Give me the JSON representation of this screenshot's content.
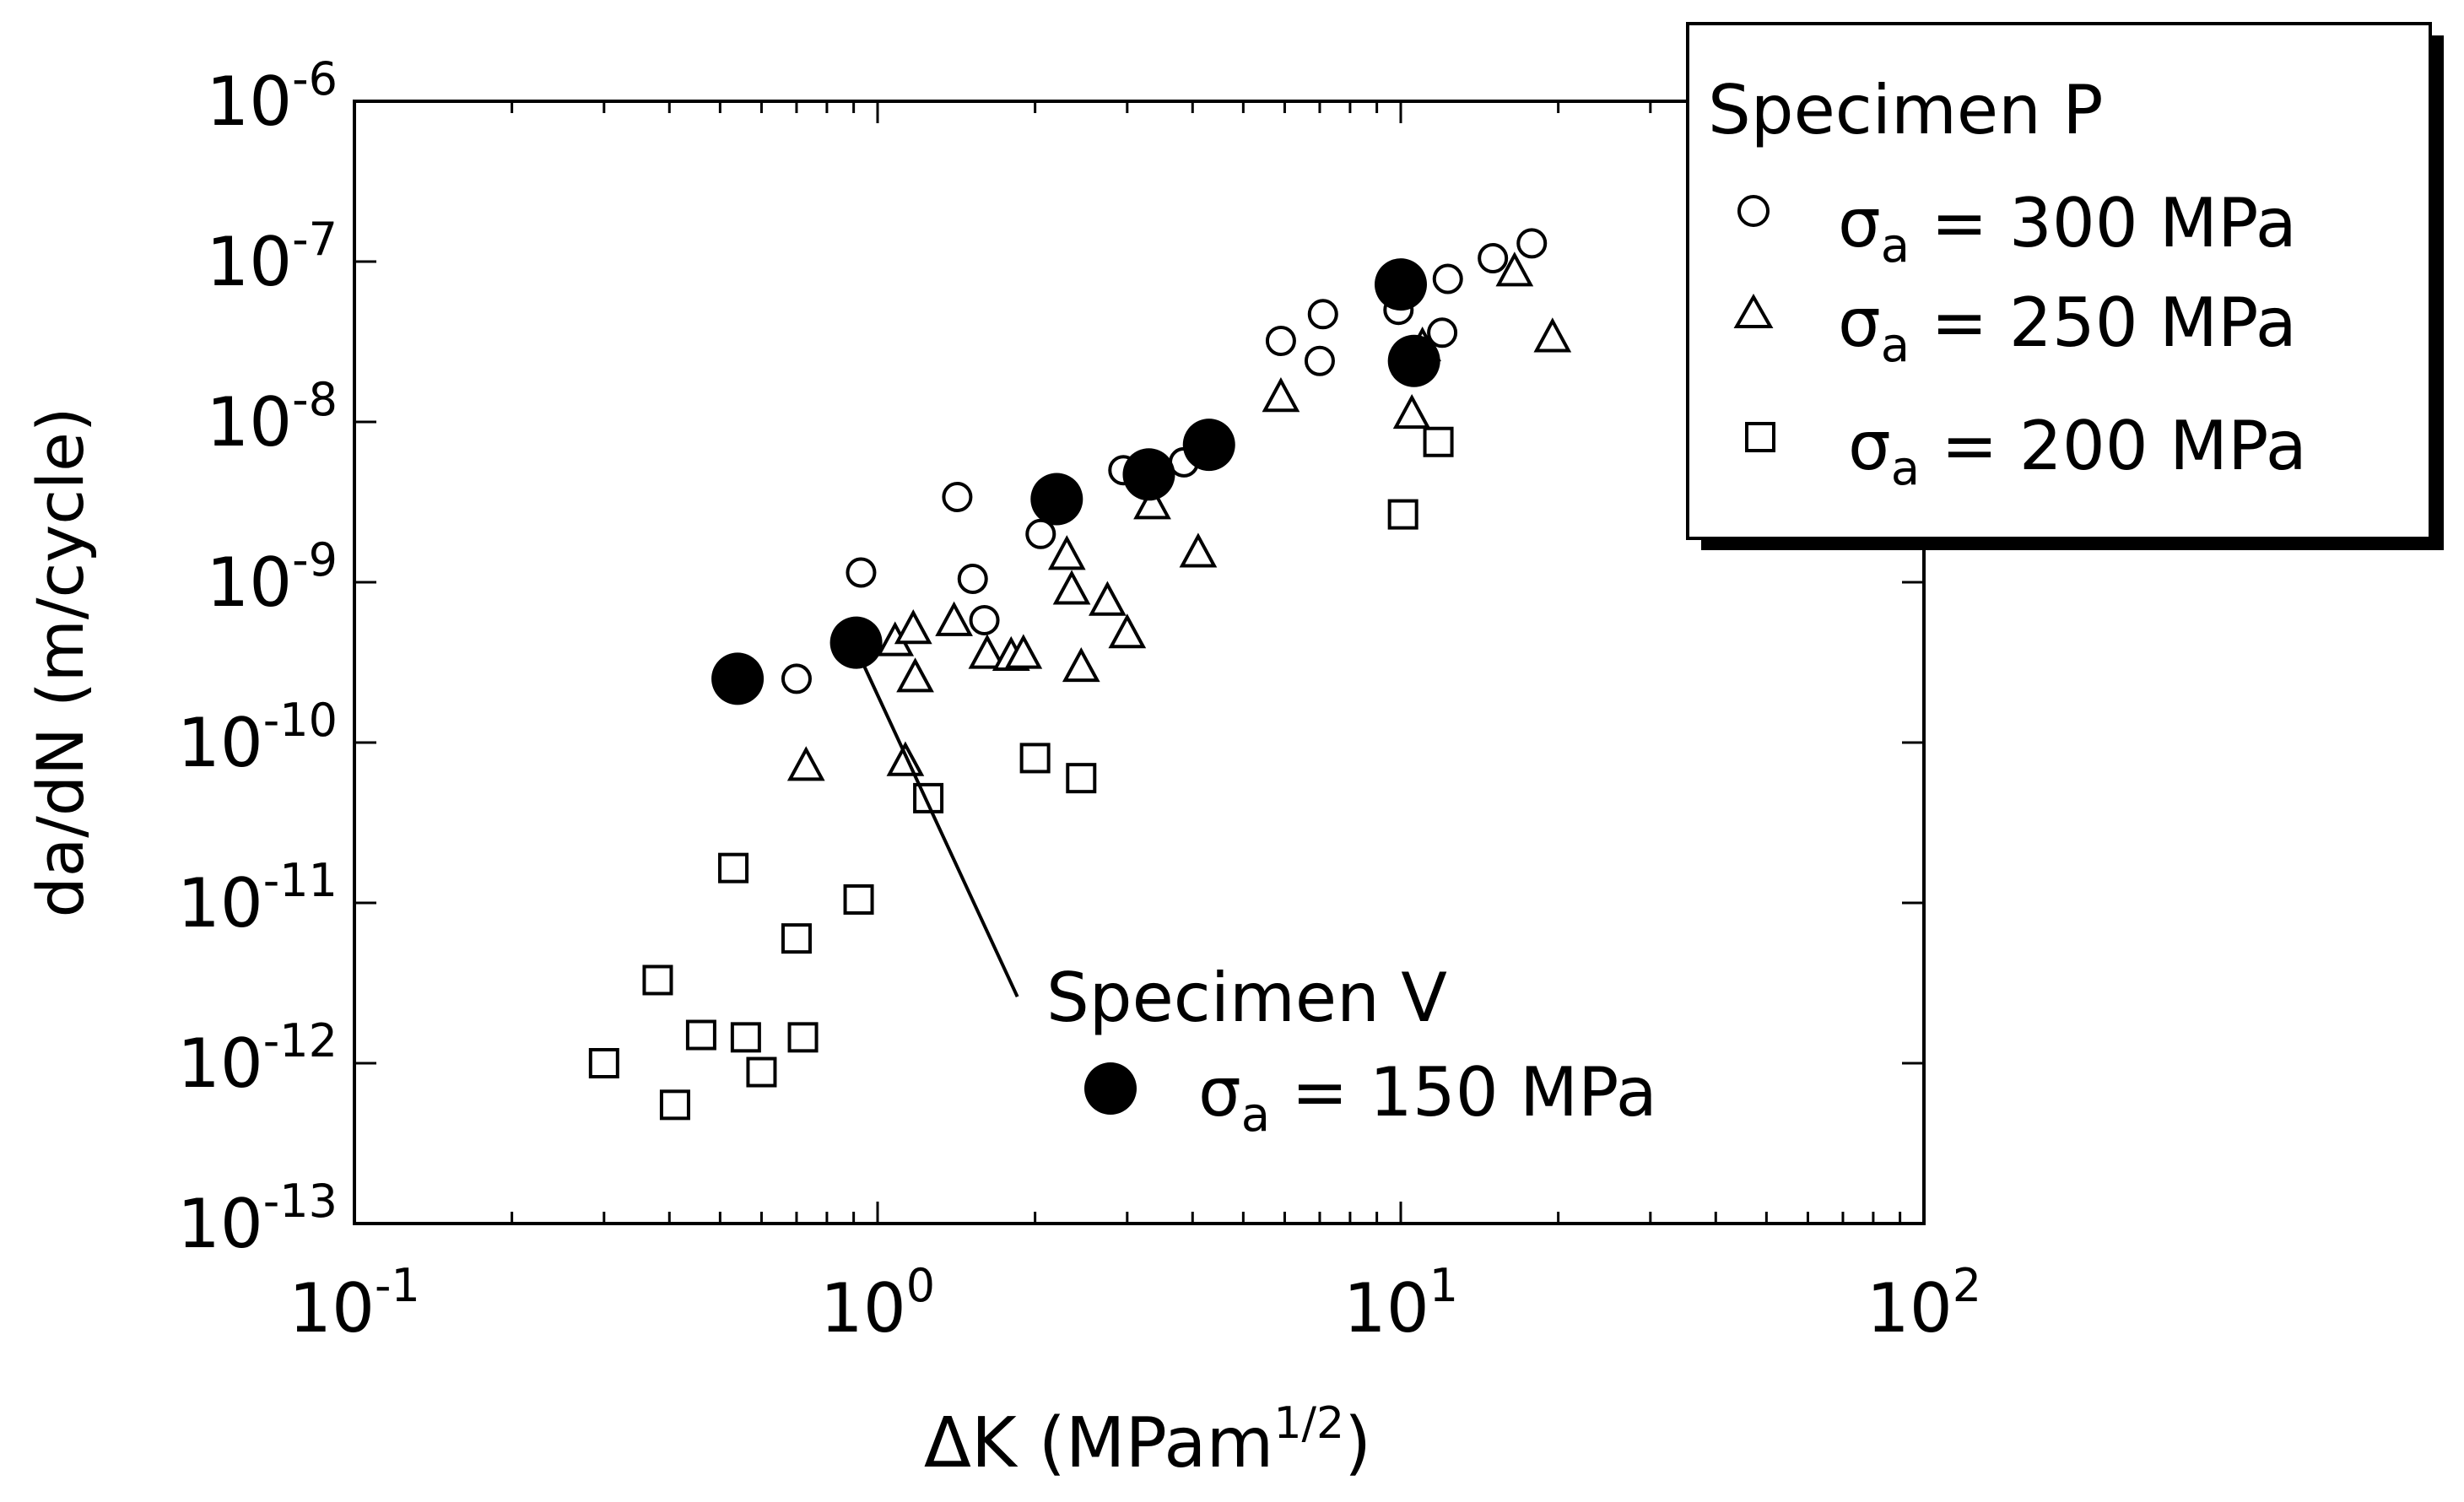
{
  "chart_data": {
    "type": "scatter",
    "xscale": "log",
    "yscale": "log",
    "xlim": [
      0.1,
      100
    ],
    "ylim": [
      1e-13,
      1e-06
    ],
    "xlabel": {
      "prefix": "ΔK  (MPam",
      "sup": "1/2",
      "suffix": ")"
    },
    "ylabel": "da/dN (m/cycle)",
    "xticks": [
      {
        "base": "10",
        "exp": "-1"
      },
      {
        "base": "10",
        "exp": "0"
      },
      {
        "base": "10",
        "exp": "1"
      },
      {
        "base": "10",
        "exp": "2"
      }
    ],
    "yticks": [
      {
        "base": "10",
        "exp": "-13"
      },
      {
        "base": "10",
        "exp": "-12"
      },
      {
        "base": "10",
        "exp": "-11"
      },
      {
        "base": "10",
        "exp": "-10"
      },
      {
        "base": "10",
        "exp": "-9"
      },
      {
        "base": "10",
        "exp": "-8"
      },
      {
        "base": "10",
        "exp": "-7"
      },
      {
        "base": "10",
        "exp": "-6"
      }
    ],
    "legend": {
      "position": "top-right",
      "title": "Specimen P",
      "sigma": "σ",
      "sub": "a",
      "entries": [
        {
          "marker": "circle",
          "rest": " = 300 MPa"
        },
        {
          "marker": "triangle",
          "rest": " = 250 MPa"
        },
        {
          "marker": "square",
          "rest": " = 200 MPa"
        }
      ]
    },
    "annotation": {
      "title": "Specimen V",
      "sigma": "σ",
      "sub": "a",
      "rest": " = 150 MPa",
      "arrow_to": [
        0.93,
        3.3e-10
      ],
      "arrow_from": [
        1.85,
        2.6e-12
      ]
    },
    "series": [
      {
        "name": "Specimen P, σa = 300 MPa",
        "marker": "circle",
        "filled": false,
        "points": [
          [
            0.7,
            2.5e-10
          ],
          [
            0.93,
            1.15e-09
          ],
          [
            1.42,
            3.4e-09
          ],
          [
            1.52,
            1.05e-09
          ],
          [
            1.6,
            5.8e-10
          ],
          [
            2.05,
            2e-09
          ],
          [
            2.95,
            5e-09
          ],
          [
            3.85,
            5.6e-09
          ],
          [
            5.9,
            3.2e-08
          ],
          [
            7.0,
            2.4e-08
          ],
          [
            7.1,
            4.7e-08
          ],
          [
            9.9,
            5e-08
          ],
          [
            12.0,
            3.6e-08
          ],
          [
            12.3,
            7.8e-08
          ],
          [
            15.0,
            1.05e-07
          ],
          [
            17.8,
            1.3e-07
          ]
        ]
      },
      {
        "name": "Specimen P, σa = 250 MPa",
        "marker": "triangle",
        "filled": false,
        "points": [
          [
            0.73,
            7e-11
          ],
          [
            1.08,
            4.2e-10
          ],
          [
            1.13,
            7.5e-11
          ],
          [
            1.17,
            5e-10
          ],
          [
            1.18,
            2.5e-10
          ],
          [
            1.4,
            5.6e-10
          ],
          [
            1.62,
            3.5e-10
          ],
          [
            1.8,
            3.4e-10
          ],
          [
            1.9,
            3.5e-10
          ],
          [
            2.3,
            1.45e-09
          ],
          [
            2.35,
            8.8e-10
          ],
          [
            2.45,
            2.9e-10
          ],
          [
            2.75,
            7.5e-10
          ],
          [
            3.0,
            4.7e-10
          ],
          [
            3.35,
            3e-09
          ],
          [
            4.1,
            1.5e-09
          ],
          [
            5.9,
            1.4e-08
          ],
          [
            10.5,
            1.1e-08
          ],
          [
            11.0,
            2.9e-08
          ],
          [
            16.5,
            8.5e-08
          ],
          [
            19.5,
            3.3e-08
          ]
        ]
      },
      {
        "name": "Specimen P, σa = 200 MPa",
        "marker": "square",
        "filled": false,
        "points": [
          [
            0.3,
            1e-12
          ],
          [
            0.38,
            3.3e-12
          ],
          [
            0.41,
            5.5e-13
          ],
          [
            0.46,
            1.5e-12
          ],
          [
            0.53,
            1.65e-11
          ],
          [
            0.56,
            1.45e-12
          ],
          [
            0.6,
            8.8e-13
          ],
          [
            0.7,
            6e-12
          ],
          [
            0.72,
            1.45e-12
          ],
          [
            0.92,
            1.05e-11
          ],
          [
            1.25,
            4.5e-11
          ],
          [
            2.0,
            8e-11
          ],
          [
            2.45,
            6e-11
          ],
          [
            10.1,
            2.65e-09
          ],
          [
            11.8,
            7.5e-09
          ]
        ]
      },
      {
        "name": "Specimen V, σa = 150 MPa",
        "marker": "circle",
        "filled": true,
        "points": [
          [
            0.54,
            2.5e-10
          ],
          [
            0.91,
            4.2e-10
          ],
          [
            2.2,
            3.3e-09
          ],
          [
            3.3,
            4.7e-09
          ],
          [
            4.3,
            7.2e-09
          ],
          [
            10.0,
            7.2e-08
          ],
          [
            10.6,
            2.4e-08
          ]
        ]
      }
    ]
  }
}
